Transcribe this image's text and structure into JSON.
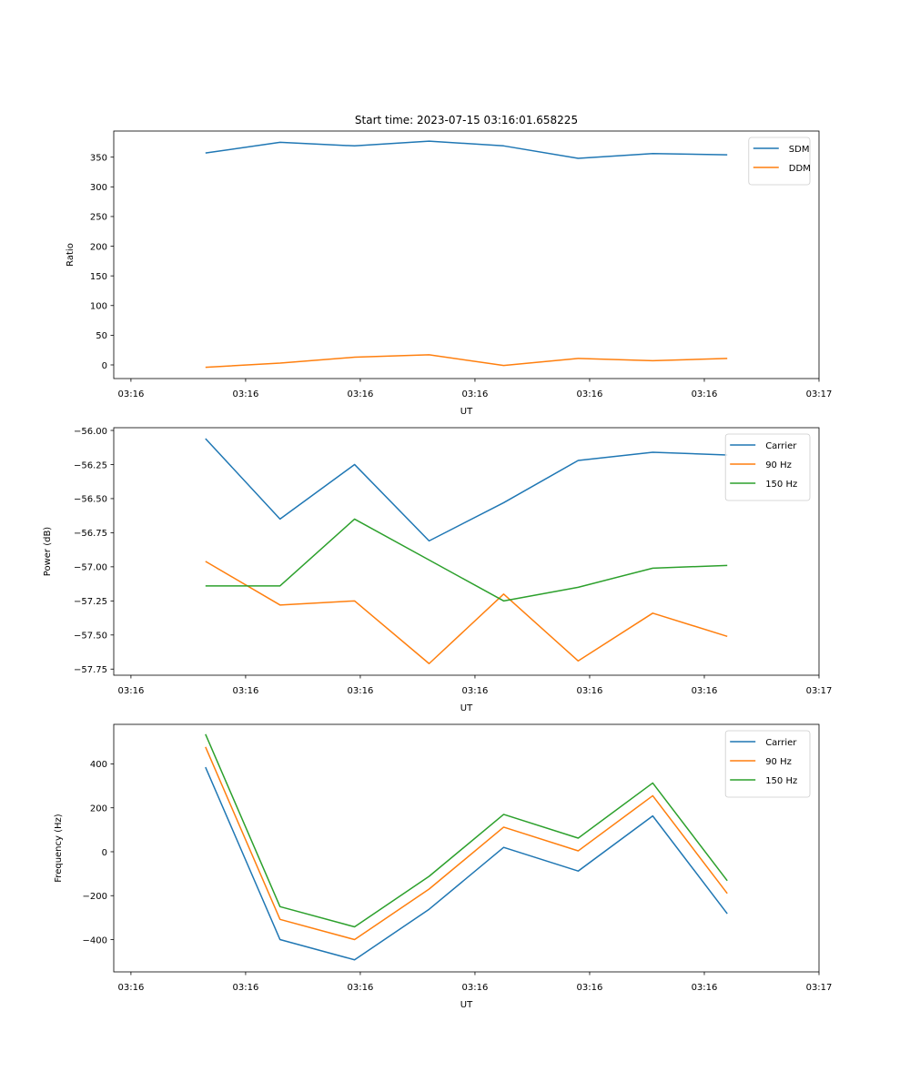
{
  "chart_data": [
    {
      "type": "line",
      "title": "Start time: 2023-07-15 03:16:01.658225",
      "xlabel": "UT",
      "ylabel": "Ratio",
      "x": [
        0.65,
        1.3,
        1.95,
        2.6,
        3.25,
        3.9,
        4.55,
        5.2
      ],
      "xlim": [
        -0.15,
        6.0
      ],
      "xticks": [
        0,
        1,
        2,
        3,
        4,
        5,
        6
      ],
      "xtick_labels": [
        "03:16",
        "03:16",
        "03:16",
        "03:16",
        "03:16",
        "03:16",
        "03:17"
      ],
      "ylim": [
        -23,
        394
      ],
      "yticks": [
        0,
        50,
        100,
        150,
        200,
        250,
        300,
        350
      ],
      "ytick_labels": [
        "0",
        "50",
        "100",
        "150",
        "200",
        "250",
        "300",
        "350"
      ],
      "legend_position": "top-right",
      "series": [
        {
          "name": "SDM",
          "color": "#1f77b4",
          "values": [
            357,
            375,
            369,
            377,
            369,
            348,
            356,
            354
          ]
        },
        {
          "name": "DDM",
          "color": "#ff7f0e",
          "values": [
            -4,
            3,
            13,
            17,
            -1,
            11,
            7,
            11
          ]
        }
      ]
    },
    {
      "type": "line",
      "title": "",
      "xlabel": "UT",
      "ylabel": "Power (dB)",
      "x": [
        0.65,
        1.3,
        1.95,
        2.6,
        3.25,
        3.9,
        4.55,
        5.2
      ],
      "xlim": [
        -0.15,
        6.0
      ],
      "xticks": [
        0,
        1,
        2,
        3,
        4,
        5,
        6
      ],
      "xtick_labels": [
        "03:16",
        "03:16",
        "03:16",
        "03:16",
        "03:16",
        "03:16",
        "03:17"
      ],
      "ylim": [
        -57.795,
        -55.98
      ],
      "yticks": [
        -56.0,
        -56.25,
        -56.5,
        -56.75,
        -57.0,
        -57.25,
        -57.5,
        -57.75
      ],
      "ytick_labels": [
        "−56.00",
        "−56.25",
        "−56.50",
        "−56.75",
        "−57.00",
        "−57.25",
        "−57.50",
        "−57.75"
      ],
      "legend_position": "top-right",
      "series": [
        {
          "name": "Carrier",
          "color": "#1f77b4",
          "values": [
            -56.06,
            -56.65,
            -56.25,
            -56.81,
            -56.53,
            -56.22,
            -56.16,
            -56.18
          ]
        },
        {
          "name": "90 Hz",
          "color": "#ff7f0e",
          "values": [
            -56.96,
            -57.28,
            -57.25,
            -57.71,
            -57.2,
            -57.69,
            -57.34,
            -57.51
          ]
        },
        {
          "name": "150 Hz",
          "color": "#2ca02c",
          "values": [
            -57.14,
            -57.14,
            -56.65,
            -56.95,
            -57.25,
            -57.15,
            -57.01,
            -56.99
          ]
        }
      ]
    },
    {
      "type": "line",
      "title": "",
      "xlabel": "UT",
      "ylabel": "Frequency (Hz)",
      "x": [
        0.65,
        1.3,
        1.95,
        2.6,
        3.25,
        3.9,
        4.55,
        5.2
      ],
      "xlim": [
        -0.15,
        6.0
      ],
      "xticks": [
        0,
        1,
        2,
        3,
        4,
        5,
        6
      ],
      "xtick_labels": [
        "03:16",
        "03:16",
        "03:16",
        "03:16",
        "03:16",
        "03:16",
        "03:17"
      ],
      "ylim": [
        -547,
        580
      ],
      "yticks": [
        -400,
        -200,
        0,
        200,
        400
      ],
      "ytick_labels": [
        "−400",
        "−200",
        "0",
        "200",
        "400"
      ],
      "legend_position": "top-right",
      "series": [
        {
          "name": "Carrier",
          "color": "#1f77b4",
          "values": [
            385,
            -400,
            -492,
            -262,
            20,
            -88,
            163,
            -282
          ]
        },
        {
          "name": "90 Hz",
          "color": "#ff7f0e",
          "values": [
            477,
            -308,
            -400,
            -170,
            112,
            4,
            255,
            -190
          ]
        },
        {
          "name": "150 Hz",
          "color": "#2ca02c",
          "values": [
            535,
            -250,
            -342,
            -112,
            170,
            62,
            313,
            -132
          ]
        }
      ]
    }
  ]
}
